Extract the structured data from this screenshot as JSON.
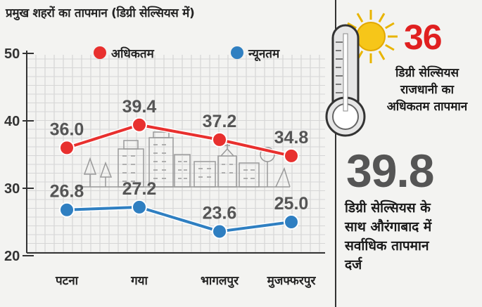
{
  "chart_data": {
    "type": "line",
    "title": "प्रमुख शहरों का तापमान (डिग्री सेल्सियस में)",
    "categories": [
      "पटना",
      "गया",
      "भागलपुर",
      "मुजफ्फरपुर"
    ],
    "series": [
      {
        "name": "अधिकतम",
        "values": [
          36.0,
          39.4,
          37.2,
          34.8
        ],
        "labels": [
          "36.0",
          "39.4",
          "37.2",
          "34.8"
        ],
        "color": "#e8302e"
      },
      {
        "name": "न्यूनतम",
        "values": [
          26.8,
          27.2,
          23.6,
          25.0
        ],
        "labels": [
          "26.8",
          "27.2",
          "23.6",
          "25.0"
        ],
        "color": "#2f7fc1"
      }
    ],
    "yticks": [
      "50",
      "40",
      "30",
      "20"
    ],
    "ylim": [
      20,
      50
    ]
  },
  "sidebar": {
    "max_temp": "36",
    "max_caption_lines": [
      "डिग्री सेल्सियस",
      "राजधानी का",
      "अधिकतम तापमान"
    ],
    "highest_temp": "39.8",
    "highest_caption_lines": [
      "डिग्री सेल्सियस के",
      "साथ औरंगाबाद में",
      "सर्वाधिक तापमान",
      "दर्ज"
    ]
  },
  "colors": {
    "accent_red": "#e02020",
    "accent_blue": "#2f7fc1",
    "text_gray": "#555555"
  }
}
